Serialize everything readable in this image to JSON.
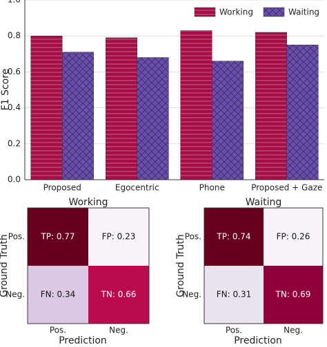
{
  "chart_data": [
    {
      "type": "bar",
      "ylabel": "F1 Score",
      "categories": [
        "Proposed",
        "Egocentric",
        "Phone",
        "Proposed + Gaze"
      ],
      "series": [
        {
          "name": "Working",
          "color": "#a50f45",
          "hatch": "-",
          "values": [
            0.8,
            0.79,
            0.83,
            0.82
          ]
        },
        {
          "name": "Waiting",
          "color": "#6a4fa8",
          "hatch": "x",
          "values": [
            0.71,
            0.68,
            0.66,
            0.75
          ]
        }
      ],
      "ylim": [
        0,
        1.0
      ],
      "yticks": [
        {
          "value": 0,
          "label": "0.0"
        },
        0.2,
        0.4,
        0.6,
        0.8,
        {
          "value": 1.0,
          "label": "1.0"
        }
      ],
      "grid": true,
      "legend": "upper right"
    },
    {
      "type": "heatmap",
      "title": "Working",
      "xlabel": "Prediction",
      "ylabel": "Ground Truth",
      "x_categories": [
        "Pos.",
        "Neg."
      ],
      "y_categories": [
        "Pos.",
        "Neg."
      ],
      "values": [
        [
          0.77,
          0.23
        ],
        [
          0.34,
          0.66
        ]
      ],
      "value_labels": [
        [
          "TP: 0.77",
          "FP: 0.23"
        ],
        [
          "FN: 0.34",
          "TN: 0.66"
        ]
      ],
      "colormap": "PuRd"
    },
    {
      "type": "heatmap",
      "title": "Waiting",
      "xlabel": "Prediction",
      "ylabel": "Ground Truth",
      "x_categories": [
        "Pos.",
        "Neg."
      ],
      "y_categories": [
        "Pos.",
        "Neg."
      ],
      "values": [
        [
          0.74,
          0.26
        ],
        [
          0.31,
          0.69
        ]
      ],
      "value_labels": [
        [
          "TP: 0.74",
          "FP: 0.26"
        ],
        [
          "FN: 0.31",
          "TN: 0.69"
        ]
      ],
      "colormap": "PuRd"
    }
  ]
}
